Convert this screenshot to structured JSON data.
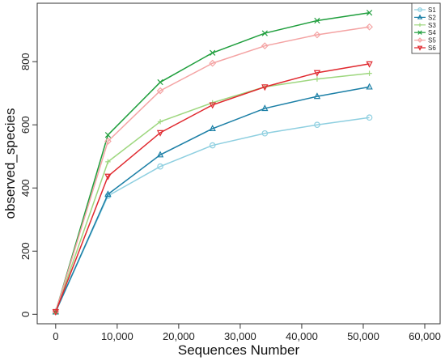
{
  "chart_data": {
    "type": "line",
    "title": "",
    "xlabel": "Sequences Number",
    "ylabel": "observed_species",
    "xlim": [
      -3000,
      62500
    ],
    "ylim": [
      -30,
      985
    ],
    "x_ticks": [
      0,
      10000,
      20000,
      30000,
      40000,
      50000,
      60000
    ],
    "x_tick_labels": [
      "0",
      "10,000",
      "20,000",
      "30,000",
      "40,000",
      "50,000",
      "60,000"
    ],
    "y_ticks": [
      0,
      200,
      400,
      600,
      800
    ],
    "y_tick_labels": [
      "0",
      "200",
      "400",
      "600",
      "800"
    ],
    "grid": false,
    "legend_position": "top-right",
    "x": [
      0,
      8500,
      17000,
      25500,
      34000,
      42500,
      51000
    ],
    "series": [
      {
        "name": "S1",
        "color": "#8ecfe0",
        "marker": "circle",
        "values": [
          8,
          375,
          468,
          535,
          573,
          600,
          623
        ]
      },
      {
        "name": "S2",
        "color": "#1b7fa6",
        "marker": "triangle",
        "values": [
          8,
          380,
          505,
          588,
          652,
          690,
          720
        ]
      },
      {
        "name": "S3",
        "color": "#9ed77f",
        "marker": "plus",
        "values": [
          8,
          483,
          610,
          670,
          720,
          745,
          763
        ]
      },
      {
        "name": "S4",
        "color": "#1e9e3c",
        "marker": "cross",
        "values": [
          8,
          568,
          735,
          828,
          890,
          930,
          955
        ]
      },
      {
        "name": "S5",
        "color": "#f4a3a3",
        "marker": "diamond",
        "values": [
          8,
          548,
          708,
          795,
          850,
          885,
          910
        ]
      },
      {
        "name": "S6",
        "color": "#e0282e",
        "marker": "triangle-down",
        "values": [
          8,
          437,
          575,
          663,
          720,
          765,
          793
        ]
      }
    ]
  }
}
